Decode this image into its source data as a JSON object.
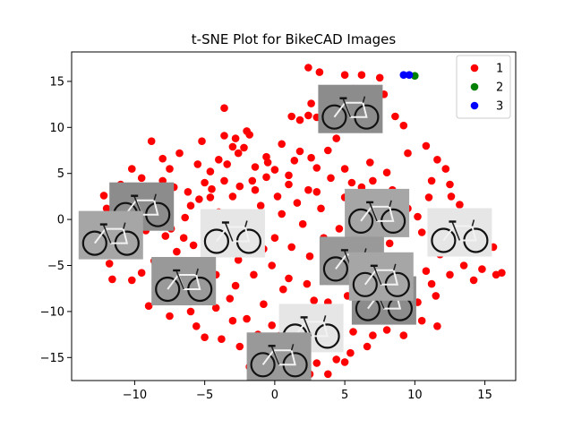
{
  "chart_data": {
    "type": "scatter",
    "title": "t-SNE Plot for BikeCAD Images",
    "xlabel": "",
    "ylabel": "",
    "xlim": [
      -14.5,
      17.2
    ],
    "ylim": [
      -17.5,
      18.2
    ],
    "xticks": [
      -10,
      -5,
      0,
      5,
      10,
      15
    ],
    "yticks": [
      -15,
      -10,
      -5,
      0,
      5,
      10,
      15
    ],
    "legend_position": "top-right",
    "series": [
      {
        "name": "1",
        "color": "#ff0000",
        "points": [
          [
            2.4,
            16.5
          ],
          [
            3.2,
            16
          ],
          [
            5.0,
            15.7
          ],
          [
            6.2,
            15.7
          ],
          [
            7.5,
            15.4
          ],
          [
            5.6,
            14.2
          ],
          [
            7.8,
            13.6
          ],
          [
            -3.6,
            12.1
          ],
          [
            2.6,
            12.6
          ],
          [
            3.6,
            12.4
          ],
          [
            4.2,
            11.8
          ],
          [
            5.0,
            12.0
          ],
          [
            8.6,
            11.2
          ],
          [
            1.2,
            11.2
          ],
          [
            1.8,
            10.8
          ],
          [
            2.4,
            11.3
          ],
          [
            3.0,
            11.1
          ],
          [
            -3.6,
            9.1
          ],
          [
            -2.8,
            8.8
          ],
          [
            -2.2,
            7.8
          ],
          [
            -2.6,
            7.2
          ],
          [
            -4.0,
            6.5
          ],
          [
            -3.4,
            6.0
          ],
          [
            -1.4,
            5.7
          ],
          [
            -0.5,
            6.2
          ],
          [
            1.4,
            6.4
          ],
          [
            2.6,
            6.7
          ],
          [
            3.0,
            5.6
          ],
          [
            -6.8,
            7.2
          ],
          [
            -8.8,
            8.5
          ],
          [
            -5.5,
            6.0
          ],
          [
            -4.6,
            5.2
          ],
          [
            -7.5,
            5.5
          ],
          [
            -10.2,
            5.5
          ],
          [
            -11.0,
            3.8
          ],
          [
            -9.5,
            4.5
          ],
          [
            -8.0,
            4.2
          ],
          [
            -7.2,
            3.5
          ],
          [
            -6.2,
            3.0
          ],
          [
            -5.4,
            2.2
          ],
          [
            -4.5,
            3.3
          ],
          [
            -3.6,
            4.2
          ],
          [
            -2.5,
            3.6
          ],
          [
            -1.4,
            3.2
          ],
          [
            -0.6,
            4.6
          ],
          [
            0.2,
            2.5
          ],
          [
            1.0,
            3.8
          ],
          [
            1.6,
            1.8
          ],
          [
            2.4,
            3.2
          ],
          [
            3.3,
            1.2
          ],
          [
            4.0,
            4.5
          ],
          [
            5.0,
            5.5
          ],
          [
            5.5,
            4.0
          ],
          [
            6.2,
            3.5
          ],
          [
            7.0,
            4.2
          ],
          [
            8.0,
            5.1
          ],
          [
            8.4,
            3.2
          ],
          [
            7.6,
            2.3
          ],
          [
            9.0,
            2.8
          ],
          [
            9.5,
            1.2
          ],
          [
            10.2,
            0.3
          ],
          [
            11.0,
            2.4
          ],
          [
            11.2,
            4.2
          ],
          [
            12.2,
            5.5
          ],
          [
            11.6,
            6.5
          ],
          [
            12.5,
            3.8
          ],
          [
            12.6,
            2.5
          ],
          [
            13.2,
            1.6
          ],
          [
            14.0,
            0.6
          ],
          [
            14.5,
            -1.0
          ],
          [
            15.0,
            -1.8
          ],
          [
            15.6,
            -3.0
          ],
          [
            15.8,
            -6.0
          ],
          [
            14.2,
            -6.6
          ],
          [
            13.5,
            -5.0
          ],
          [
            12.5,
            -6.0
          ],
          [
            11.2,
            -7.0
          ],
          [
            11.5,
            -8.3
          ],
          [
            10.2,
            -9.0
          ],
          [
            9.5,
            -9.6
          ],
          [
            10.5,
            -11.0
          ],
          [
            11.6,
            -11.6
          ],
          [
            8.8,
            -10.8
          ],
          [
            8.0,
            -12.0
          ],
          [
            7.0,
            -12.6
          ],
          [
            6.6,
            -13.8
          ],
          [
            5.4,
            -14.5
          ],
          [
            4.4,
            -15.2
          ],
          [
            3.0,
            -15.6
          ],
          [
            2.2,
            -14.2
          ],
          [
            1.0,
            -13.4
          ],
          [
            0.4,
            -12.6
          ],
          [
            -0.2,
            -11.5
          ],
          [
            -1.2,
            -12.5
          ],
          [
            -2.0,
            -10.8
          ],
          [
            -3.0,
            -11.0
          ],
          [
            -3.8,
            -13.0
          ],
          [
            -5.6,
            -11.6
          ],
          [
            -7.5,
            -10.5
          ],
          [
            -7.4,
            -8.7
          ],
          [
            -9.0,
            -9.4
          ],
          [
            -10.2,
            -6.6
          ],
          [
            -11.6,
            -6.5
          ],
          [
            -9.5,
            -5.8
          ],
          [
            -8.6,
            -4.5
          ],
          [
            -7.0,
            -3.5
          ],
          [
            -5.8,
            -2.8
          ],
          [
            -4.8,
            -1.8
          ],
          [
            -3.5,
            -0.6
          ],
          [
            -2.3,
            0.5
          ],
          [
            -1.3,
            -1.3
          ],
          [
            0.0,
            -2.0
          ],
          [
            1.2,
            -3.0
          ],
          [
            2.5,
            -4.0
          ],
          [
            3.5,
            -2.0
          ],
          [
            4.6,
            -1.0
          ],
          [
            5.8,
            -0.8
          ],
          [
            7.0,
            -1.8
          ],
          [
            7.8,
            -4.6
          ],
          [
            8.6,
            -6.6
          ],
          [
            6.6,
            -7.6
          ],
          [
            5.2,
            -8.3
          ],
          [
            3.8,
            -9.0
          ],
          [
            2.3,
            -7.0
          ],
          [
            1.0,
            -6.4
          ],
          [
            -0.2,
            -5.0
          ],
          [
            -1.5,
            -6.0
          ],
          [
            -2.8,
            -7.2
          ],
          [
            -4.2,
            -6.0
          ],
          [
            -5.6,
            -5.2
          ],
          [
            -6.5,
            -2.0
          ],
          [
            -7.4,
            -1.0
          ],
          [
            -8.6,
            0.5
          ],
          [
            -9.6,
            1.2
          ],
          [
            -10.8,
            2.6
          ],
          [
            -12.0,
            1.2
          ],
          [
            -12.6,
            -0.6
          ],
          [
            -12.2,
            -3.0
          ],
          [
            -11.8,
            -4.8
          ],
          [
            -3.0,
            7.9
          ],
          [
            -1.8,
            9.2
          ],
          [
            0.5,
            8.2
          ],
          [
            -0.6,
            6.8
          ],
          [
            -5.2,
            8.5
          ],
          [
            -8.0,
            6.6
          ],
          [
            3.8,
            7.5
          ],
          [
            6.8,
            6.2
          ],
          [
            9.5,
            7.2
          ],
          [
            10.8,
            8.0
          ],
          [
            9.2,
            10.2
          ],
          [
            4.4,
            8.8
          ],
          [
            -9.0,
            2.0
          ],
          [
            -6.0,
            1.5
          ],
          [
            -4.0,
            0.8
          ],
          [
            -2.0,
            -2.5
          ],
          [
            0.5,
            0.6
          ],
          [
            2.0,
            -0.5
          ],
          [
            4.0,
            -3.0
          ],
          [
            6.0,
            -4.5
          ],
          [
            8.2,
            -2.6
          ],
          [
            9.6,
            -4.2
          ],
          [
            10.8,
            -5.6
          ],
          [
            12.0,
            -2.6
          ],
          [
            13.6,
            -2.2
          ],
          [
            12.8,
            -0.4
          ],
          [
            -10.8,
            -2.2
          ],
          [
            -9.8,
            -3.8
          ],
          [
            -6.8,
            -6.8
          ],
          [
            -3.2,
            -8.6
          ],
          [
            -0.8,
            -9.2
          ],
          [
            1.5,
            -10.4
          ],
          [
            3.2,
            -10.8
          ],
          [
            5.6,
            -12.2
          ],
          [
            7.5,
            -10.2
          ],
          [
            9.2,
            -12.6
          ],
          [
            -1.0,
            -14.8
          ],
          [
            -1.8,
            -16.0
          ],
          [
            0.8,
            -16.2
          ],
          [
            3.8,
            -16.8
          ],
          [
            5.0,
            -15.5
          ],
          [
            -4.2,
            -9.6
          ],
          [
            -6.0,
            -10.0
          ],
          [
            -8.0,
            -7.5
          ],
          [
            -5.0,
            4.0
          ],
          [
            -3.0,
            2.5
          ],
          [
            -1.0,
            1.5
          ],
          [
            1.0,
            4.8
          ],
          [
            3.0,
            3.0
          ],
          [
            5.0,
            2.4
          ],
          [
            6.8,
            0.8
          ],
          [
            8.8,
            0.5
          ],
          [
            10.5,
            -1.4
          ],
          [
            11.8,
            -3.8
          ],
          [
            14.8,
            -5.4
          ],
          [
            16.2,
            -5.8
          ],
          [
            -4.2,
            -3.6
          ],
          [
            -2.6,
            -4.4
          ],
          [
            -0.8,
            -3.2
          ],
          [
            0.6,
            -7.6
          ],
          [
            2.8,
            -8.8
          ],
          [
            4.6,
            -6.2
          ],
          [
            6.4,
            -9.6
          ],
          [
            7.8,
            -8.2
          ],
          [
            9.0,
            -7.0
          ],
          [
            -1.6,
            4.2
          ],
          [
            0.0,
            5.4
          ],
          [
            1.8,
            7.4
          ],
          [
            -2.0,
            9.6
          ],
          [
            -4.6,
            2.4
          ],
          [
            -6.4,
            0.2
          ],
          [
            -7.8,
            -1.8
          ],
          [
            -9.2,
            -1.2
          ],
          [
            -11.2,
            0.8
          ],
          [
            -12.2,
            2.6
          ],
          [
            -7.6,
            -8.0
          ],
          [
            -5.0,
            -12.8
          ],
          [
            -2.5,
            -13.8
          ],
          [
            0.2,
            -15.4
          ],
          [
            2.5,
            -16.8
          ]
        ]
      },
      {
        "name": "2",
        "color": "#008000",
        "points": [
          [
            10.0,
            15.6
          ]
        ]
      },
      {
        "name": "3",
        "color": "#0000ff",
        "points": [
          [
            9.2,
            15.7
          ],
          [
            9.6,
            15.7
          ]
        ]
      }
    ],
    "thumbnails": [
      {
        "x": -9.5,
        "y": 1.4
      },
      {
        "x": -11.7,
        "y": -1.7
      },
      {
        "x": -3.0,
        "y": -1.5
      },
      {
        "x": -6.5,
        "y": -6.7
      },
      {
        "x": 5.4,
        "y": 12.0
      },
      {
        "x": 7.3,
        "y": 0.7
      },
      {
        "x": 13.2,
        "y": -1.4
      },
      {
        "x": 5.5,
        "y": -4.5
      },
      {
        "x": 7.8,
        "y": -8.8
      },
      {
        "x": 7.6,
        "y": -6.2
      },
      {
        "x": 2.6,
        "y": -11.8
      },
      {
        "x": 0.3,
        "y": -14.9
      }
    ]
  }
}
